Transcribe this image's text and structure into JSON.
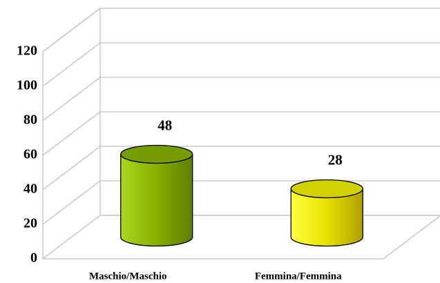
{
  "chart_data": {
    "type": "bar",
    "categories": [
      "Maschio/Maschio",
      "Femmina/Femmina"
    ],
    "values": [
      48,
      28
    ],
    "colors": [
      "#8fbf00",
      "#ffff00"
    ],
    "ylim": [
      0,
      120
    ],
    "yticks": [
      0,
      20,
      40,
      60,
      80,
      100,
      120
    ],
    "grid": true
  }
}
